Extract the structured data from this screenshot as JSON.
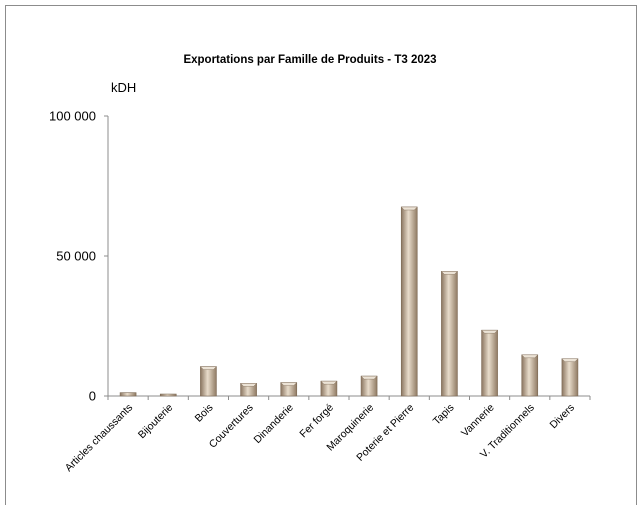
{
  "chart_data": {
    "type": "bar",
    "title": "Exportations  par Famille de Produits - T3 2023",
    "ylabel": "kDH",
    "xlabel": "",
    "ylim": [
      0,
      100000
    ],
    "yticks": [
      {
        "value": 0,
        "label": "0"
      },
      {
        "value": 50000,
        "label": "50 000"
      },
      {
        "value": 100000,
        "label": "100 000"
      }
    ],
    "categories": [
      "Articles chaussants",
      "Bijouterie",
      "Bois",
      "Couvertures",
      "Dinanderie",
      "Fer forgé",
      "Maroquinerie",
      "Poterie et Pierre",
      "Tapis",
      "Vannerie",
      "V. Traditionnels",
      "Divers"
    ],
    "values": [
      1200,
      700,
      10500,
      4500,
      4800,
      5300,
      7100,
      67500,
      44500,
      23500,
      14700,
      13300
    ],
    "legend": "none",
    "grid": false,
    "colors": {
      "bar": "#b59f86",
      "bar_light": "#ece3d6",
      "bar_dark": "#7d6a55",
      "axis": "#8c8c8c"
    }
  }
}
